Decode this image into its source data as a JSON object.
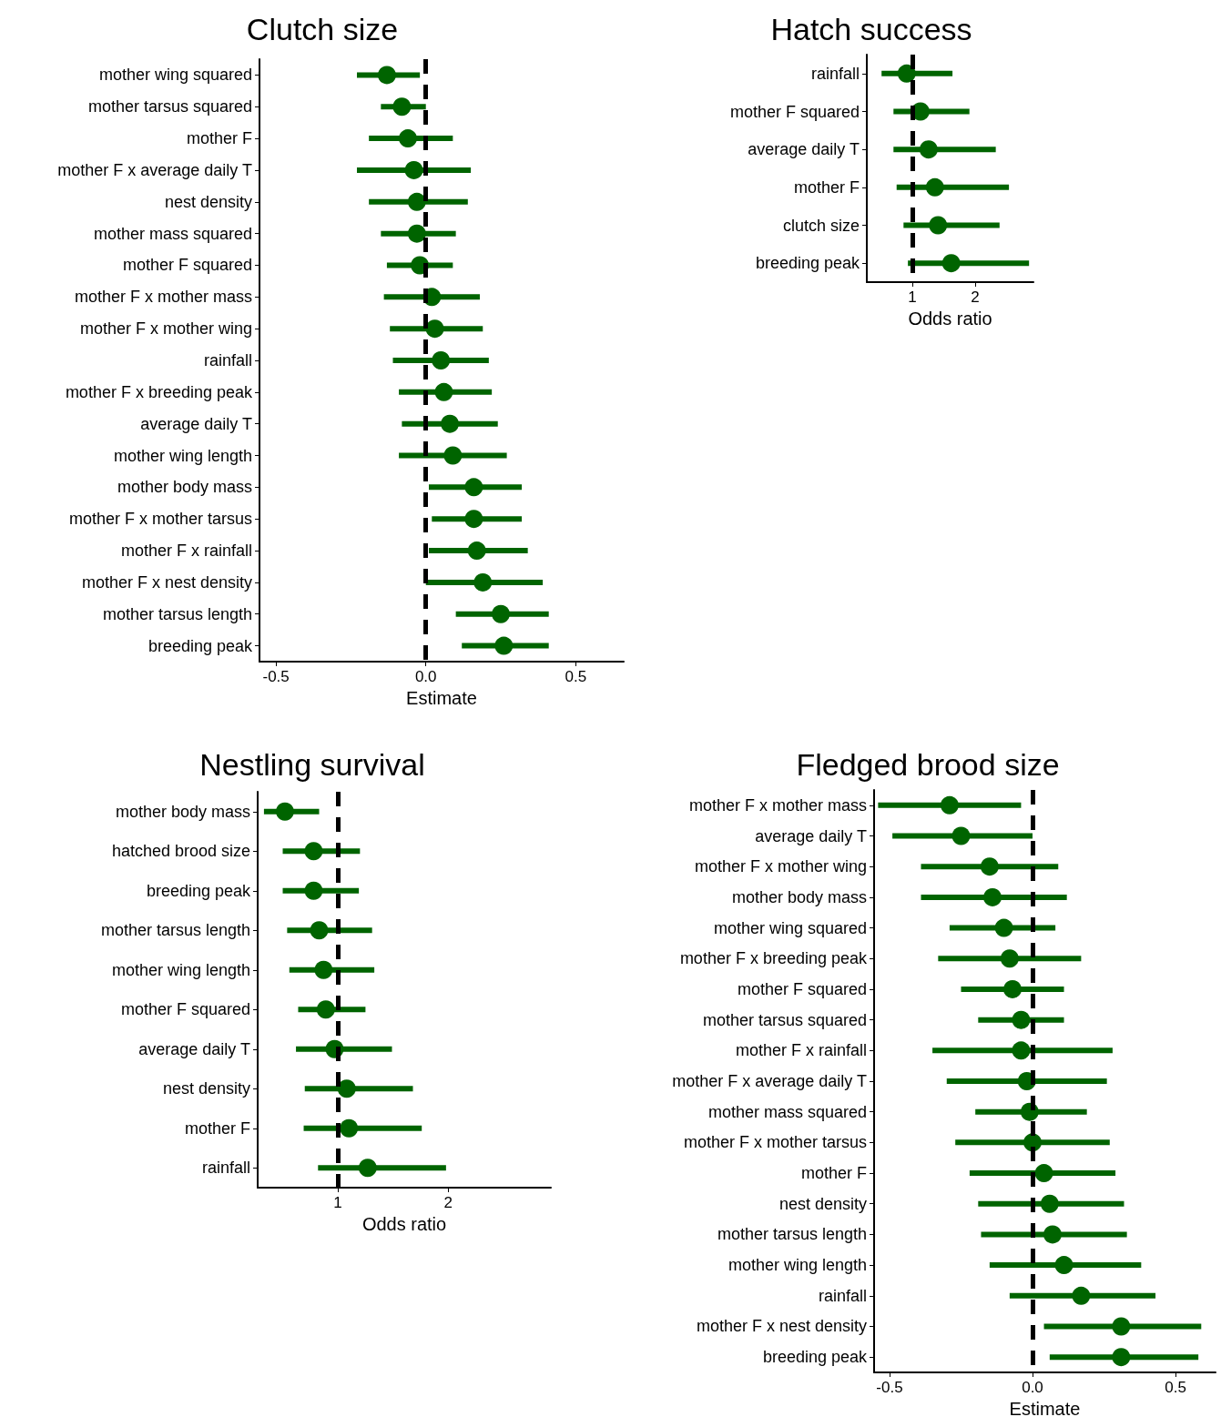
{
  "chart_data": [
    {
      "type": "scatter",
      "orientation": "horizontal",
      "title": "Clutch size",
      "xlabel": "Estimate",
      "grid": false,
      "marker": "circle",
      "categories": [
        "mother wing squared",
        "mother tarsus squared",
        "mother F",
        "mother F x average daily T",
        "nest density",
        "mother mass squared",
        "mother F squared",
        "mother F x mother mass",
        "mother F x mother wing",
        "rainfall",
        "mother F x breeding peak",
        "average daily T",
        "mother wing length",
        "mother body mass",
        "mother F x mother tarsus",
        "mother F x rainfall",
        "mother F x nest density",
        "mother tarsus length",
        "breeding peak"
      ],
      "series": [
        {
          "color": "#006400",
          "values": [
            -0.13,
            -0.08,
            -0.06,
            -0.04,
            -0.03,
            -0.03,
            -0.02,
            0.02,
            0.03,
            0.05,
            0.06,
            0.08,
            0.09,
            0.16,
            0.16,
            0.17,
            0.19,
            0.25,
            0.26
          ],
          "errors": [
            [
              -0.23,
              -0.02
            ],
            [
              -0.15,
              0.0
            ],
            [
              -0.19,
              0.09
            ],
            [
              -0.23,
              0.15
            ],
            [
              -0.19,
              0.14
            ],
            [
              -0.15,
              0.1
            ],
            [
              -0.13,
              0.09
            ],
            [
              -0.14,
              0.18
            ],
            [
              -0.12,
              0.19
            ],
            [
              -0.11,
              0.21
            ],
            [
              -0.09,
              0.22
            ],
            [
              -0.08,
              0.24
            ],
            [
              -0.09,
              0.27
            ],
            [
              0.01,
              0.32
            ],
            [
              0.02,
              0.32
            ],
            [
              0.01,
              0.34
            ],
            [
              0.0,
              0.39
            ],
            [
              0.1,
              0.41
            ],
            [
              0.12,
              0.41
            ]
          ]
        }
      ],
      "xlim": [
        -0.555,
        0.66
      ],
      "xticks": [
        -0.5,
        {
          "value": 0,
          "label": "0.0"
        },
        0.5
      ],
      "ref_lines": [
        {
          "axis": "x",
          "value": 0,
          "label": null,
          "color": "#000000",
          "line_style": "dashed"
        }
      ]
    },
    {
      "type": "scatter",
      "orientation": "horizontal",
      "title": "Hatch success",
      "xlabel": "Odds ratio",
      "grid": false,
      "marker": "circle",
      "categories": [
        "rainfall",
        "mother F squared",
        "average daily T",
        "mother F",
        "clutch size",
        "breeding peak"
      ],
      "series": [
        {
          "color": "#006400",
          "values": [
            0.91,
            1.13,
            1.26,
            1.36,
            1.41,
            1.62
          ],
          "errors": [
            [
              0.51,
              1.64
            ],
            [
              0.7,
              1.91
            ],
            [
              0.7,
              2.33
            ],
            [
              0.75,
              2.54
            ],
            [
              0.86,
              2.39
            ],
            [
              0.93,
              2.86
            ]
          ]
        }
      ],
      "xlim": [
        0.275,
        2.93
      ],
      "xticks": [
        1,
        2
      ],
      "ref_lines": [
        {
          "axis": "x",
          "value": 1,
          "label": null,
          "color": "#000000",
          "line_style": "dashed"
        }
      ]
    },
    {
      "type": "scatter",
      "orientation": "horizontal",
      "title": "Nestling survival",
      "xlabel": "Odds ratio",
      "grid": false,
      "marker": "circle",
      "categories": [
        "mother body mass",
        "hatched brood size",
        "breeding peak",
        "mother tarsus length",
        "mother wing length",
        "mother F squared",
        "average daily T",
        "nest density",
        "mother F",
        "rainfall"
      ],
      "series": [
        {
          "color": "#006400",
          "values": [
            0.52,
            0.78,
            0.78,
            0.83,
            0.87,
            0.89,
            0.97,
            1.08,
            1.1,
            1.27
          ],
          "errors": [
            [
              0.33,
              0.83
            ],
            [
              0.5,
              1.2
            ],
            [
              0.5,
              1.19
            ],
            [
              0.54,
              1.31
            ],
            [
              0.56,
              1.33
            ],
            [
              0.64,
              1.25
            ],
            [
              0.62,
              1.49
            ],
            [
              0.7,
              1.68
            ],
            [
              0.69,
              1.76
            ],
            [
              0.82,
              1.98
            ]
          ]
        }
      ],
      "xlim": [
        0.273,
        2.93
      ],
      "xticks": [
        1,
        2
      ],
      "ref_lines": [
        {
          "axis": "x",
          "value": 1,
          "label": null,
          "color": "#000000",
          "line_style": "dashed"
        }
      ]
    },
    {
      "type": "scatter",
      "orientation": "horizontal",
      "title": "Fledged brood size",
      "xlabel": "Estimate",
      "grid": false,
      "marker": "circle",
      "categories": [
        "mother F x mother mass",
        "average daily T",
        "mother F x mother wing",
        "mother body mass",
        "mother wing squared",
        "mother F x breeding peak",
        "mother F squared",
        "mother tarsus squared",
        "mother F x rainfall",
        "mother F x average daily T",
        "mother mass squared",
        "mother F x mother tarsus",
        "mother F",
        "nest density",
        "mother tarsus length",
        "mother wing length",
        "rainfall",
        "mother F x nest density",
        "breeding peak"
      ],
      "series": [
        {
          "color": "#006400",
          "values": [
            -0.29,
            -0.25,
            -0.15,
            -0.14,
            -0.1,
            -0.08,
            -0.07,
            -0.04,
            -0.04,
            -0.02,
            -0.01,
            0.0,
            0.04,
            0.06,
            0.07,
            0.11,
            0.17,
            0.31,
            0.31
          ],
          "errors": [
            [
              -0.54,
              -0.04
            ],
            [
              -0.49,
              0.0
            ],
            [
              -0.39,
              0.09
            ],
            [
              -0.39,
              0.12
            ],
            [
              -0.29,
              0.08
            ],
            [
              -0.33,
              0.17
            ],
            [
              -0.25,
              0.11
            ],
            [
              -0.19,
              0.11
            ],
            [
              -0.35,
              0.28
            ],
            [
              -0.3,
              0.26
            ],
            [
              -0.2,
              0.19
            ],
            [
              -0.27,
              0.27
            ],
            [
              -0.22,
              0.29
            ],
            [
              -0.19,
              0.32
            ],
            [
              -0.18,
              0.33
            ],
            [
              -0.15,
              0.38
            ],
            [
              -0.08,
              0.43
            ],
            [
              0.04,
              0.59
            ],
            [
              0.06,
              0.58
            ]
          ]
        }
      ],
      "xlim": [
        -0.554,
        0.64
      ],
      "xticks": [
        -0.5,
        {
          "value": 0,
          "label": "0.0"
        },
        0.5
      ],
      "ref_lines": [
        {
          "axis": "x",
          "value": 0,
          "label": null,
          "color": "#000000",
          "line_style": "dashed"
        }
      ]
    }
  ]
}
